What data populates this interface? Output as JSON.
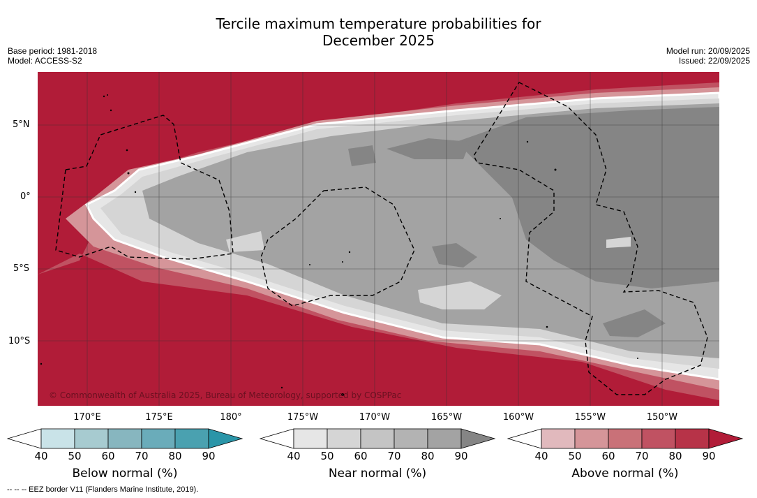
{
  "title_line1": "Tercile maximum temperature probabilities for",
  "title_line2": "December 2025",
  "meta_left": {
    "base_period": "Base period: 1981-2018",
    "model": "Model: ACCESS-S2"
  },
  "meta_right": {
    "model_run": "Model run: 20/09/2025",
    "issued": "Issued: 22/09/2025"
  },
  "copyright": "© Commonwealth of Australia 2025, Bureau of Meteorology, supported by COSPPac",
  "lat_labels": [
    "5°N",
    "0°",
    "5°S",
    "10°S"
  ],
  "lon_labels": [
    "170°E",
    "175°E",
    "180°",
    "175°W",
    "170°W",
    "165°W",
    "160°W",
    "155°W",
    "150°W"
  ],
  "colorbars": [
    {
      "title": "Below normal (%)",
      "colors": [
        "#ffffff",
        "#c9e3e8",
        "#a7cbd0",
        "#87b6bf",
        "#6aacba",
        "#4aa1b0",
        "#2a95a8"
      ]
    },
    {
      "title": "Near normal (%)",
      "colors": [
        "#ffffff",
        "#e6e6e6",
        "#d5d5d5",
        "#c4c4c4",
        "#b3b3b3",
        "#a3a3a3",
        "#858585"
      ]
    },
    {
      "title": "Above normal (%)",
      "colors": [
        "#ffffff",
        "#e1b9bd",
        "#d59599",
        "#c97178",
        "#c05262",
        "#b73348",
        "#b11c38"
      ]
    }
  ],
  "tick_values": [
    "40",
    "50",
    "60",
    "70",
    "80",
    "90"
  ],
  "footer": "-- -- -- EEZ border V11 (Flanders Marine Institute, 2019).",
  "colors": {
    "above_dark": "#b11c38",
    "above_mid": "#c05262",
    "above_light": "#d59599",
    "near_light": "#d5d5d5",
    "near_mid": "#a3a3a3",
    "near_dark": "#858585"
  }
}
